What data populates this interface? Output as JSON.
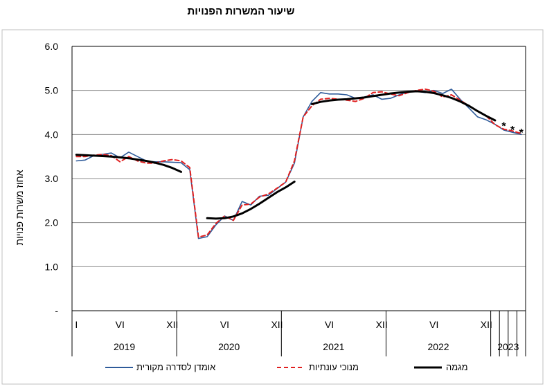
{
  "chart_data": {
    "type": "line",
    "title": "שיעור המשרות הפנויות",
    "ylabel": "אחוז  משרות פנויות",
    "xlabel": "",
    "ylim": [
      0,
      6
    ],
    "y_ticks": [
      {
        "value": 6,
        "label": "6.0"
      },
      {
        "value": 5,
        "label": "5.0"
      },
      {
        "value": 4,
        "label": "4.0"
      },
      {
        "value": 3,
        "label": "3.0"
      },
      {
        "value": 2,
        "label": "2.0"
      },
      {
        "value": 1,
        "label": "1.0"
      },
      {
        "value": 0,
        "label": "-"
      }
    ],
    "x_start_month": "2019-01",
    "months_total": 52,
    "month_ticks": [
      {
        "month": 0,
        "label": "I"
      },
      {
        "month": 5,
        "label": "VI"
      },
      {
        "month": 11,
        "label": "XII"
      },
      {
        "month": 17,
        "label": "VI"
      },
      {
        "month": 23,
        "label": "XII"
      },
      {
        "month": 29,
        "label": "VI"
      },
      {
        "month": 35,
        "label": "XII"
      },
      {
        "month": 41,
        "label": "VI"
      },
      {
        "month": 47,
        "label": "XII"
      }
    ],
    "years": [
      {
        "label": "2019",
        "start": 0,
        "end": 12
      },
      {
        "label": "2020",
        "start": 12,
        "end": 24
      },
      {
        "label": "2021",
        "start": 24,
        "end": 36
      },
      {
        "label": "2022",
        "start": 36,
        "end": 48
      },
      {
        "label": "2023",
        "start": 48,
        "end": 52
      }
    ],
    "grid": true,
    "legend_position": "bottom",
    "series": [
      {
        "name": "אומדן לסדרה מקורית",
        "color": "#2e5b9a",
        "style": "solid",
        "values": [
          3.4,
          3.42,
          3.52,
          3.55,
          3.58,
          3.47,
          3.6,
          3.5,
          3.4,
          3.38,
          3.38,
          3.37,
          3.36,
          3.2,
          1.64,
          1.68,
          1.95,
          2.15,
          2.05,
          2.48,
          2.4,
          2.6,
          2.62,
          2.77,
          2.92,
          3.35,
          4.4,
          4.75,
          4.95,
          4.92,
          4.92,
          4.9,
          4.82,
          4.85,
          4.9,
          4.8,
          4.82,
          4.9,
          4.97,
          4.98,
          4.95,
          5.0,
          4.93,
          5.03,
          4.8,
          4.6,
          4.4,
          4.33,
          4.23,
          4.1,
          4.05,
          4.0
        ]
      },
      {
        "name": "מנוכי עונתיות",
        "color": "#e02020",
        "style": "dashed",
        "values": [
          3.5,
          3.5,
          3.53,
          3.55,
          3.52,
          3.38,
          3.5,
          3.4,
          3.35,
          3.35,
          3.4,
          3.43,
          3.4,
          3.25,
          1.67,
          1.72,
          1.98,
          2.15,
          2.05,
          2.4,
          2.42,
          2.58,
          2.65,
          2.78,
          2.92,
          3.4,
          4.4,
          4.65,
          4.8,
          4.82,
          4.8,
          4.78,
          4.75,
          4.82,
          4.95,
          4.97,
          4.92,
          4.88,
          4.95,
          5.0,
          5.03,
          4.98,
          4.85,
          4.9,
          4.78,
          4.65,
          4.53,
          4.42,
          4.22,
          4.12,
          4.08,
          4.02
        ]
      },
      {
        "name": "מגמה",
        "color": "#000000",
        "style": "solid-thick",
        "values": [
          3.54,
          3.53,
          3.52,
          3.51,
          3.5,
          3.48,
          3.46,
          3.43,
          3.4,
          3.36,
          3.31,
          3.24,
          3.15,
          null,
          null,
          2.1,
          2.09,
          2.1,
          2.14,
          2.21,
          2.31,
          2.43,
          2.56,
          2.69,
          2.8,
          2.93,
          null,
          4.69,
          4.74,
          4.77,
          4.79,
          4.8,
          4.82,
          4.84,
          4.87,
          4.9,
          4.93,
          4.95,
          4.97,
          4.98,
          4.97,
          4.94,
          4.89,
          4.83,
          4.75,
          4.65,
          4.53,
          4.42,
          4.32,
          null,
          null,
          null
        ]
      }
    ],
    "annotations": [
      {
        "marker": "*",
        "month": 49,
        "value": 4.23
      },
      {
        "marker": "*",
        "month": 50,
        "value": 4.15
      },
      {
        "marker": "*",
        "month": 51,
        "value": 4.08
      }
    ]
  }
}
